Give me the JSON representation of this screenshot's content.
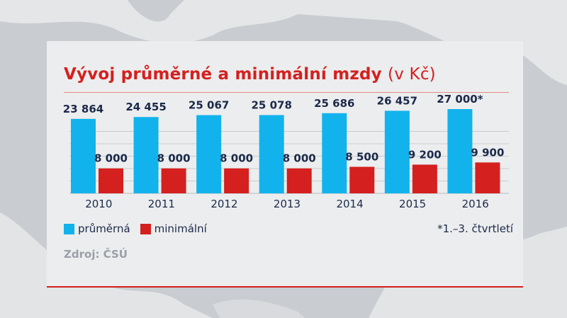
{
  "colors": {
    "average": "#12b3ec",
    "minimum": "#d4201f",
    "title": "#d4201f",
    "text": "#1b2a4a",
    "source": "#9aa0a8"
  },
  "title_main": "Vývoj průměrné a minimální mzdy",
  "title_unit": "(v Kč)",
  "legend": [
    {
      "label": "průměrná",
      "color": "#12b3ec"
    },
    {
      "label": "minimální",
      "color": "#d4201f"
    }
  ],
  "footnote": "*1.–3. čtvrtletí",
  "source": "Zdroj: ČSÚ",
  "chart_data": {
    "type": "bar",
    "title": "Vývoj průměrné a minimální mzdy (v Kč)",
    "xlabel": "",
    "ylabel": "",
    "categories": [
      "2010",
      "2011",
      "2012",
      "2013",
      "2014",
      "2015",
      "2016"
    ],
    "series": [
      {
        "name": "průměrná",
        "color": "#12b3ec",
        "values": [
          23864,
          24455,
          25067,
          25078,
          25686,
          26457,
          27000
        ],
        "labels": [
          "23 864",
          "24 455",
          "25 067",
          "25 078",
          "25 686",
          "26 457",
          "27 000*"
        ]
      },
      {
        "name": "minimální",
        "color": "#d4201f",
        "values": [
          8000,
          8000,
          8000,
          8000,
          8500,
          9200,
          9900
        ],
        "labels": [
          "8 000",
          "8 000",
          "8 000",
          "8 000",
          "8 500",
          "9 200",
          "9 900"
        ]
      }
    ],
    "ylim": [
      0,
      29500
    ],
    "grid": true,
    "legend_position": "bottom-left"
  }
}
